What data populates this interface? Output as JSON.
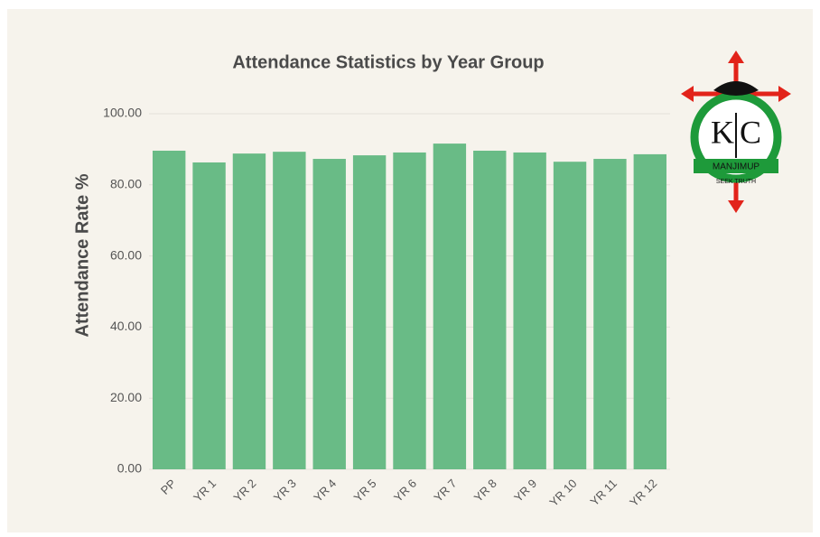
{
  "chart_data": {
    "type": "bar",
    "title": "Attendance Statistics by Year Group",
    "y_axis_label": "Attendance Rate %",
    "categories": [
      "PP",
      "YR 1",
      "YR 2",
      "YR 3",
      "YR 4",
      "YR 5",
      "YR 6",
      "YR 7",
      "YR 8",
      "YR 9",
      "YR 10",
      "YR 11",
      "YR 12"
    ],
    "values": [
      89.6,
      86.3,
      88.8,
      89.3,
      87.3,
      88.3,
      89.1,
      91.6,
      89.6,
      89.1,
      86.5,
      87.3,
      88.6
    ],
    "color": "#69bb86",
    "ylim": [
      0,
      100
    ],
    "yticks": [
      {
        "value": 0,
        "label": "0.00"
      },
      {
        "value": 20,
        "label": "20.00"
      },
      {
        "value": 40,
        "label": "40.00"
      },
      {
        "value": 60,
        "label": "60.00"
      },
      {
        "value": 80,
        "label": "80.00"
      },
      {
        "value": 100,
        "label": "100.00"
      }
    ],
    "grid": true
  },
  "logo": {
    "left_letter": "K",
    "right_letter": "C",
    "name": "MANJIMUP",
    "motto": "SEEK TRUTH"
  }
}
